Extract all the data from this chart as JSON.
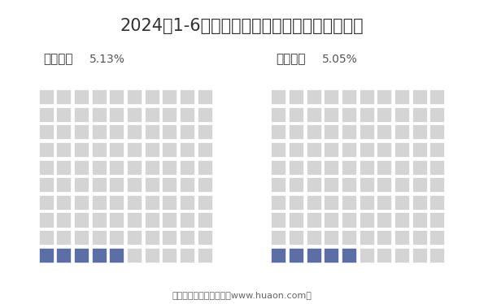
{
  "title": "2024年1-6月四川福彩及体彩销售额占全国比重",
  "title_fontsize": 15,
  "panels": [
    {
      "label": "福利彩票",
      "percent_text": "5.13%",
      "percent": 5.13,
      "n_highlight": 5,
      "highlight_color": "#5b6fa6",
      "bg_color": "#d4d4d4"
    },
    {
      "label": "体育彩票",
      "percent_text": "5.05%",
      "percent": 5.05,
      "n_highlight": 5,
      "highlight_color": "#5b6fa6",
      "bg_color": "#d4d4d4"
    }
  ],
  "grid_cols": 10,
  "grid_rows": 10,
  "footer": "制图：华经产业研究院（www.huaon.com）",
  "footer_fontsize": 8,
  "background_color": "#ffffff",
  "label_fontsize": 11,
  "percent_fontsize": 10
}
